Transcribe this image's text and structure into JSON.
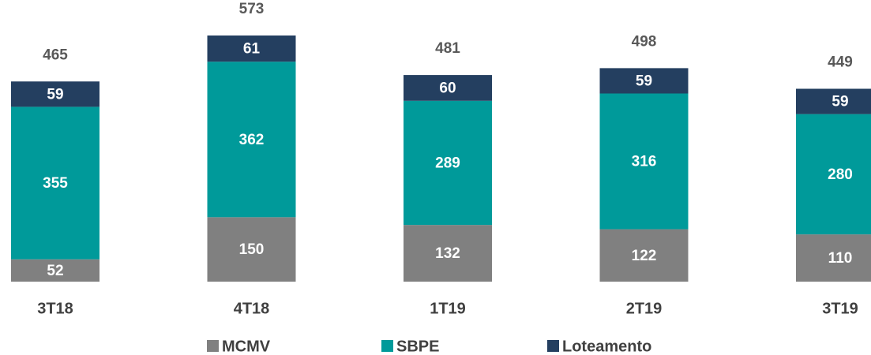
{
  "chart_data": {
    "type": "stacked_bar",
    "categories": [
      "3T18",
      "4T18",
      "1T19",
      "2T19",
      "3T19"
    ],
    "series": [
      {
        "name": "MCMV",
        "color": "#808080",
        "values": [
          52,
          150,
          132,
          122,
          110
        ]
      },
      {
        "name": "SBPE",
        "color": "#009a9a",
        "values": [
          355,
          362,
          289,
          316,
          280
        ]
      },
      {
        "name": "Loteamento",
        "color": "#243f60",
        "values": [
          59,
          61,
          60,
          59,
          59
        ]
      }
    ],
    "totals": [
      465,
      573,
      481,
      498,
      449
    ],
    "legend": "bottom"
  }
}
